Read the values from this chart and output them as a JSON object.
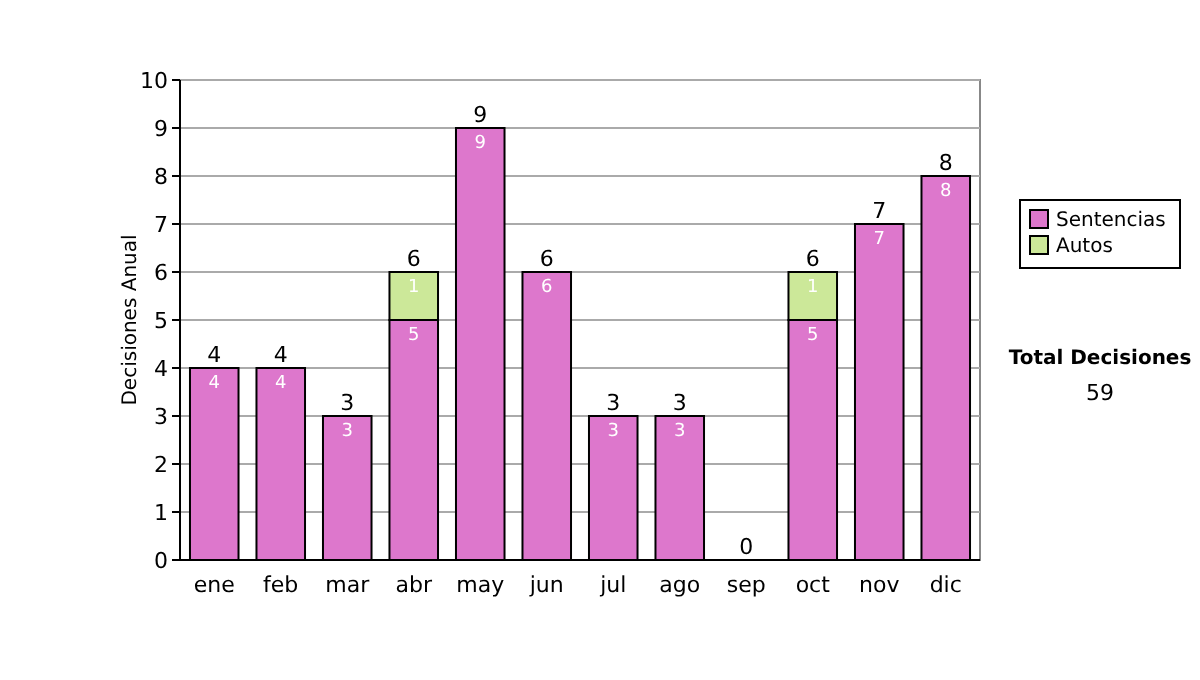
{
  "chart_data": {
    "type": "bar",
    "stacked": true,
    "ylabel": "Decisiones Anual",
    "categories": [
      "ene",
      "feb",
      "mar",
      "abr",
      "may",
      "jun",
      "jul",
      "ago",
      "sep",
      "oct",
      "nov",
      "dic"
    ],
    "series": [
      {
        "name": "Sentencias",
        "color": "#dd77cc",
        "values": [
          4,
          4,
          3,
          5,
          9,
          6,
          3,
          3,
          0,
          5,
          7,
          8
        ],
        "value_labels": [
          "4",
          "4",
          "3",
          "5",
          "9",
          "6",
          "3",
          "3",
          null,
          "5",
          "7",
          "8"
        ]
      },
      {
        "name": "Autos",
        "color": "#cce899",
        "values": [
          0,
          0,
          0,
          1,
          0,
          0,
          0,
          0,
          0,
          1,
          0,
          0
        ],
        "value_labels": [
          null,
          null,
          null,
          "1",
          null,
          null,
          null,
          null,
          null,
          "1",
          null,
          null
        ]
      }
    ],
    "totals": [
      "4",
      "4",
      "3",
      "6",
      "9",
      "6",
      "3",
      "3",
      "0",
      "6",
      "7",
      "8"
    ],
    "ylim": [
      0,
      10
    ],
    "yticks": [
      0,
      1,
      2,
      3,
      4,
      5,
      6,
      7,
      8,
      9,
      10
    ],
    "grid": "y",
    "legend": "right",
    "annotations": [
      "Total Decisiones",
      "59"
    ]
  }
}
